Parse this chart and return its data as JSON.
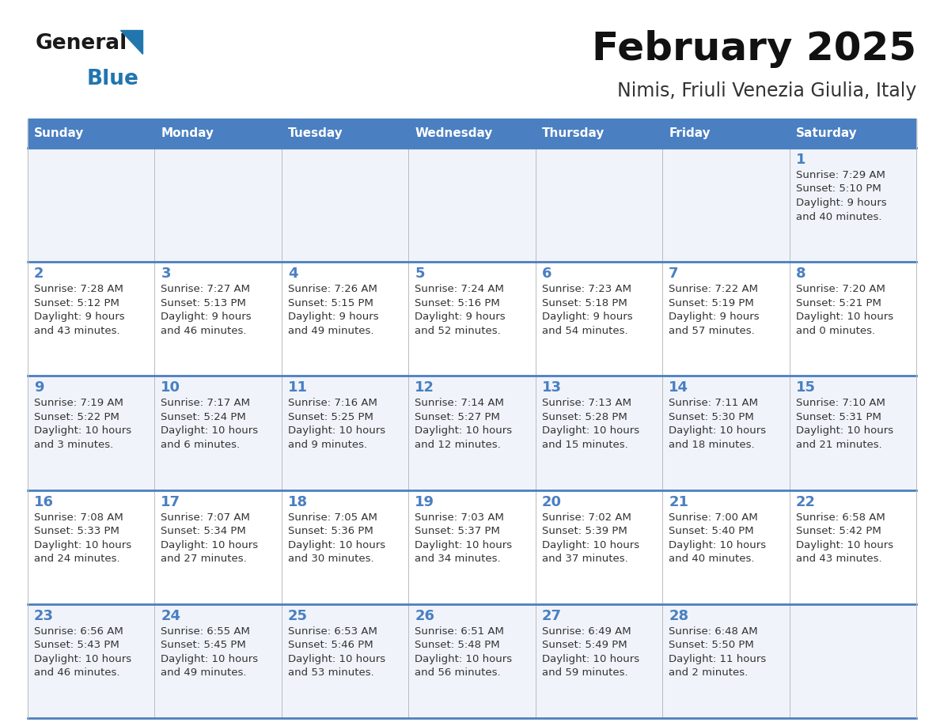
{
  "title": "February 2025",
  "subtitle": "Nimis, Friuli Venezia Giulia, Italy",
  "days_of_week": [
    "Sunday",
    "Monday",
    "Tuesday",
    "Wednesday",
    "Thursday",
    "Friday",
    "Saturday"
  ],
  "header_bg": "#4a7fc1",
  "header_text": "#FFFFFF",
  "cell_bg_odd": "#F0F4FA",
  "cell_bg_even": "#FFFFFF",
  "border_color": "#4a7fc1",
  "text_color": "#333333",
  "day_number_color": "#4a7fc1",
  "logo_dark": "#1a1a1a",
  "logo_blue": "#2176AE",
  "calendar_data": [
    [
      {
        "day": null,
        "sunrise": null,
        "sunset": null,
        "daylight": null
      },
      {
        "day": null,
        "sunrise": null,
        "sunset": null,
        "daylight": null
      },
      {
        "day": null,
        "sunrise": null,
        "sunset": null,
        "daylight": null
      },
      {
        "day": null,
        "sunrise": null,
        "sunset": null,
        "daylight": null
      },
      {
        "day": null,
        "sunrise": null,
        "sunset": null,
        "daylight": null
      },
      {
        "day": null,
        "sunrise": null,
        "sunset": null,
        "daylight": null
      },
      {
        "day": 1,
        "sunrise": "7:29 AM",
        "sunset": "5:10 PM",
        "daylight": "9 hours\nand 40 minutes."
      }
    ],
    [
      {
        "day": 2,
        "sunrise": "7:28 AM",
        "sunset": "5:12 PM",
        "daylight": "9 hours\nand 43 minutes."
      },
      {
        "day": 3,
        "sunrise": "7:27 AM",
        "sunset": "5:13 PM",
        "daylight": "9 hours\nand 46 minutes."
      },
      {
        "day": 4,
        "sunrise": "7:26 AM",
        "sunset": "5:15 PM",
        "daylight": "9 hours\nand 49 minutes."
      },
      {
        "day": 5,
        "sunrise": "7:24 AM",
        "sunset": "5:16 PM",
        "daylight": "9 hours\nand 52 minutes."
      },
      {
        "day": 6,
        "sunrise": "7:23 AM",
        "sunset": "5:18 PM",
        "daylight": "9 hours\nand 54 minutes."
      },
      {
        "day": 7,
        "sunrise": "7:22 AM",
        "sunset": "5:19 PM",
        "daylight": "9 hours\nand 57 minutes."
      },
      {
        "day": 8,
        "sunrise": "7:20 AM",
        "sunset": "5:21 PM",
        "daylight": "10 hours\nand 0 minutes."
      }
    ],
    [
      {
        "day": 9,
        "sunrise": "7:19 AM",
        "sunset": "5:22 PM",
        "daylight": "10 hours\nand 3 minutes."
      },
      {
        "day": 10,
        "sunrise": "7:17 AM",
        "sunset": "5:24 PM",
        "daylight": "10 hours\nand 6 minutes."
      },
      {
        "day": 11,
        "sunrise": "7:16 AM",
        "sunset": "5:25 PM",
        "daylight": "10 hours\nand 9 minutes."
      },
      {
        "day": 12,
        "sunrise": "7:14 AM",
        "sunset": "5:27 PM",
        "daylight": "10 hours\nand 12 minutes."
      },
      {
        "day": 13,
        "sunrise": "7:13 AM",
        "sunset": "5:28 PM",
        "daylight": "10 hours\nand 15 minutes."
      },
      {
        "day": 14,
        "sunrise": "7:11 AM",
        "sunset": "5:30 PM",
        "daylight": "10 hours\nand 18 minutes."
      },
      {
        "day": 15,
        "sunrise": "7:10 AM",
        "sunset": "5:31 PM",
        "daylight": "10 hours\nand 21 minutes."
      }
    ],
    [
      {
        "day": 16,
        "sunrise": "7:08 AM",
        "sunset": "5:33 PM",
        "daylight": "10 hours\nand 24 minutes."
      },
      {
        "day": 17,
        "sunrise": "7:07 AM",
        "sunset": "5:34 PM",
        "daylight": "10 hours\nand 27 minutes."
      },
      {
        "day": 18,
        "sunrise": "7:05 AM",
        "sunset": "5:36 PM",
        "daylight": "10 hours\nand 30 minutes."
      },
      {
        "day": 19,
        "sunrise": "7:03 AM",
        "sunset": "5:37 PM",
        "daylight": "10 hours\nand 34 minutes."
      },
      {
        "day": 20,
        "sunrise": "7:02 AM",
        "sunset": "5:39 PM",
        "daylight": "10 hours\nand 37 minutes."
      },
      {
        "day": 21,
        "sunrise": "7:00 AM",
        "sunset": "5:40 PM",
        "daylight": "10 hours\nand 40 minutes."
      },
      {
        "day": 22,
        "sunrise": "6:58 AM",
        "sunset": "5:42 PM",
        "daylight": "10 hours\nand 43 minutes."
      }
    ],
    [
      {
        "day": 23,
        "sunrise": "6:56 AM",
        "sunset": "5:43 PM",
        "daylight": "10 hours\nand 46 minutes."
      },
      {
        "day": 24,
        "sunrise": "6:55 AM",
        "sunset": "5:45 PM",
        "daylight": "10 hours\nand 49 minutes."
      },
      {
        "day": 25,
        "sunrise": "6:53 AM",
        "sunset": "5:46 PM",
        "daylight": "10 hours\nand 53 minutes."
      },
      {
        "day": 26,
        "sunrise": "6:51 AM",
        "sunset": "5:48 PM",
        "daylight": "10 hours\nand 56 minutes."
      },
      {
        "day": 27,
        "sunrise": "6:49 AM",
        "sunset": "5:49 PM",
        "daylight": "10 hours\nand 59 minutes."
      },
      {
        "day": 28,
        "sunrise": "6:48 AM",
        "sunset": "5:50 PM",
        "daylight": "11 hours\nand 2 minutes."
      },
      {
        "day": null,
        "sunrise": null,
        "sunset": null,
        "daylight": null
      }
    ]
  ]
}
